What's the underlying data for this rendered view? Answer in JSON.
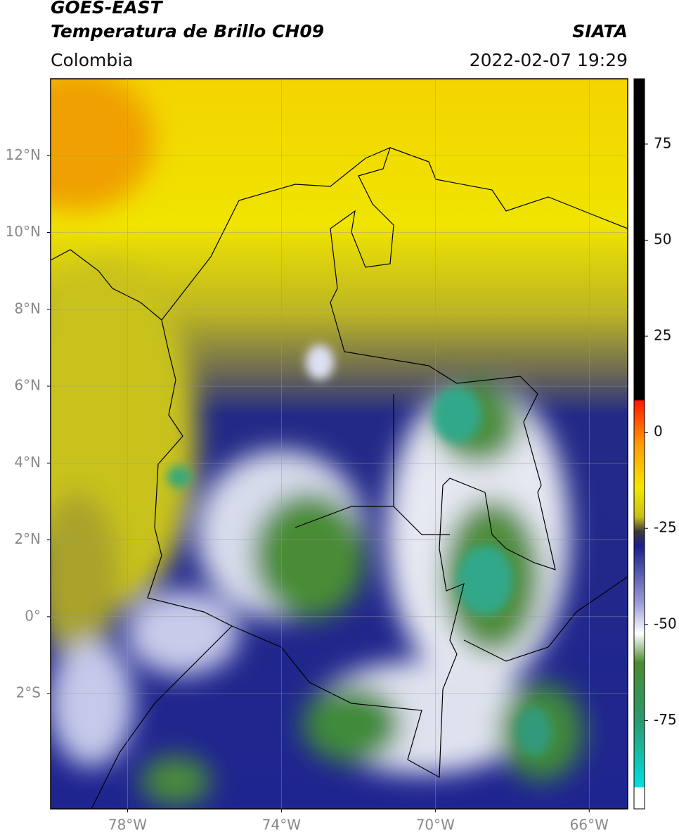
{
  "header": {
    "title": "GOES-EAST",
    "subtitle": "Temperatura de Brillo CH09",
    "region": "Colombia",
    "source": "SIATA",
    "datetime": "2022-02-07 19:29"
  },
  "map": {
    "lonlim": [
      -80,
      -65
    ],
    "latlim": [
      -5,
      14
    ],
    "grid": true,
    "lonticks": [
      {
        "value": -78,
        "label": "78°W"
      },
      {
        "value": -74,
        "label": "74°W"
      },
      {
        "value": -70,
        "label": "70°W"
      },
      {
        "value": -66,
        "label": "66°W"
      }
    ],
    "latticks": [
      {
        "value": 12,
        "label": "12°N"
      },
      {
        "value": 10,
        "label": "10°N"
      },
      {
        "value": 8,
        "label": "8°N"
      },
      {
        "value": 6,
        "label": "6°N"
      },
      {
        "value": 4,
        "label": "4°N"
      },
      {
        "value": 2,
        "label": "2°N"
      },
      {
        "value": 0,
        "label": "0°"
      },
      {
        "value": -2,
        "label": "2°S"
      }
    ]
  },
  "colorbar": {
    "lim": [
      -98,
      92
    ],
    "ticks": [
      75,
      50,
      25,
      0,
      -25,
      -50,
      -75
    ]
  }
}
